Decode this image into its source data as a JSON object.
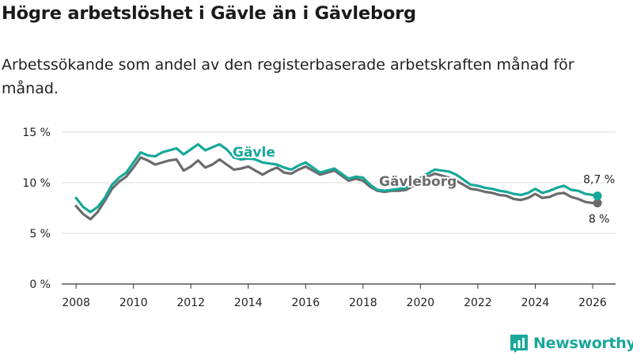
{
  "title": "Högre arbetslöshet i Gävle än i Gävleborg",
  "subtitle": "Arbetssökande som andel av den registerbaserade arbetskraften månad för månad.",
  "brand": {
    "name": "Newsworthy",
    "icon": "newsworthy-logo-icon"
  },
  "colors": {
    "gavle": "#16a89a",
    "gavleborg": "#6b6b6b",
    "grid": "#dedede",
    "axis": "#333333",
    "text": "#222222"
  },
  "chart_data": {
    "type": "line",
    "title": "Högre arbetslöshet i Gävle än i Gävleborg",
    "subtitle": "Arbetssökande som andel av den registerbaserade arbetskraften månad för månad.",
    "xlabel": "",
    "ylabel": "",
    "xlim": [
      2007.5,
      2026.8
    ],
    "ylim": [
      0,
      15
    ],
    "x_ticks": [
      2008,
      2010,
      2012,
      2014,
      2016,
      2018,
      2020,
      2022,
      2024,
      2026
    ],
    "x_tick_labels": [
      "2008",
      "2010",
      "2012",
      "2014",
      "2016",
      "2018",
      "2020",
      "2022",
      "2024",
      "2026"
    ],
    "y_ticks": [
      0,
      5,
      10,
      15
    ],
    "y_tick_labels": [
      "0 %",
      "5 %",
      "10 %",
      "15 %"
    ],
    "grid": true,
    "legend": "direct labels on the lines",
    "series": [
      {
        "name": "Gävle",
        "label": "Gävle",
        "end_label": "8,7 %",
        "points": [
          [
            2008.0,
            8.5
          ],
          [
            2008.25,
            7.6
          ],
          [
            2008.5,
            7.1
          ],
          [
            2008.75,
            7.6
          ],
          [
            2009.0,
            8.5
          ],
          [
            2009.25,
            9.8
          ],
          [
            2009.5,
            10.5
          ],
          [
            2009.75,
            11.0
          ],
          [
            2010.0,
            12.0
          ],
          [
            2010.25,
            13.0
          ],
          [
            2010.5,
            12.7
          ],
          [
            2010.75,
            12.6
          ],
          [
            2011.0,
            13.0
          ],
          [
            2011.25,
            13.2
          ],
          [
            2011.5,
            13.4
          ],
          [
            2011.75,
            12.8
          ],
          [
            2012.0,
            13.3
          ],
          [
            2012.25,
            13.8
          ],
          [
            2012.5,
            13.2
          ],
          [
            2012.75,
            13.5
          ],
          [
            2013.0,
            13.8
          ],
          [
            2013.25,
            13.3
          ],
          [
            2013.5,
            12.5
          ],
          [
            2013.75,
            12.3
          ],
          [
            2014.0,
            12.4
          ],
          [
            2014.25,
            12.3
          ],
          [
            2014.5,
            12.0
          ],
          [
            2014.75,
            11.9
          ],
          [
            2015.0,
            11.8
          ],
          [
            2015.25,
            11.5
          ],
          [
            2015.5,
            11.3
          ],
          [
            2015.75,
            11.7
          ],
          [
            2016.0,
            12.0
          ],
          [
            2016.25,
            11.5
          ],
          [
            2016.5,
            11.0
          ],
          [
            2016.75,
            11.2
          ],
          [
            2017.0,
            11.4
          ],
          [
            2017.25,
            10.9
          ],
          [
            2017.5,
            10.4
          ],
          [
            2017.75,
            10.6
          ],
          [
            2018.0,
            10.5
          ],
          [
            2018.25,
            9.8
          ],
          [
            2018.5,
            9.3
          ],
          [
            2018.75,
            9.2
          ],
          [
            2019.0,
            9.3
          ],
          [
            2019.25,
            9.4
          ],
          [
            2019.5,
            9.5
          ],
          [
            2019.75,
            10.0
          ],
          [
            2020.0,
            10.5
          ],
          [
            2020.25,
            10.9
          ],
          [
            2020.5,
            11.3
          ],
          [
            2020.75,
            11.2
          ],
          [
            2021.0,
            11.1
          ],
          [
            2021.25,
            10.8
          ],
          [
            2021.5,
            10.3
          ],
          [
            2021.75,
            9.8
          ],
          [
            2022.0,
            9.7
          ],
          [
            2022.25,
            9.5
          ],
          [
            2022.5,
            9.4
          ],
          [
            2022.75,
            9.2
          ],
          [
            2023.0,
            9.1
          ],
          [
            2023.25,
            8.9
          ],
          [
            2023.5,
            8.8
          ],
          [
            2023.75,
            9.0
          ],
          [
            2024.0,
            9.4
          ],
          [
            2024.25,
            9.0
          ],
          [
            2024.5,
            9.2
          ],
          [
            2024.75,
            9.5
          ],
          [
            2025.0,
            9.7
          ],
          [
            2025.25,
            9.3
          ],
          [
            2025.5,
            9.2
          ],
          [
            2025.75,
            8.9
          ],
          [
            2026.0,
            8.8
          ],
          [
            2026.17,
            8.7
          ]
        ]
      },
      {
        "name": "Gävleborg",
        "label": "Gävleborg",
        "end_label": "8 %",
        "points": [
          [
            2008.0,
            7.7
          ],
          [
            2008.25,
            6.9
          ],
          [
            2008.5,
            6.4
          ],
          [
            2008.75,
            7.1
          ],
          [
            2009.0,
            8.2
          ],
          [
            2009.25,
            9.4
          ],
          [
            2009.5,
            10.1
          ],
          [
            2009.75,
            10.6
          ],
          [
            2010.0,
            11.5
          ],
          [
            2010.25,
            12.5
          ],
          [
            2010.5,
            12.2
          ],
          [
            2010.75,
            11.8
          ],
          [
            2011.0,
            12.0
          ],
          [
            2011.25,
            12.2
          ],
          [
            2011.5,
            12.3
          ],
          [
            2011.75,
            11.2
          ],
          [
            2012.0,
            11.6
          ],
          [
            2012.25,
            12.2
          ],
          [
            2012.5,
            11.5
          ],
          [
            2012.75,
            11.8
          ],
          [
            2013.0,
            12.3
          ],
          [
            2013.25,
            11.8
          ],
          [
            2013.5,
            11.3
          ],
          [
            2013.75,
            11.4
          ],
          [
            2014.0,
            11.6
          ],
          [
            2014.25,
            11.2
          ],
          [
            2014.5,
            10.8
          ],
          [
            2014.75,
            11.2
          ],
          [
            2015.0,
            11.5
          ],
          [
            2015.25,
            11.0
          ],
          [
            2015.5,
            10.9
          ],
          [
            2015.75,
            11.3
          ],
          [
            2016.0,
            11.6
          ],
          [
            2016.25,
            11.2
          ],
          [
            2016.5,
            10.8
          ],
          [
            2016.75,
            11.0
          ],
          [
            2017.0,
            11.2
          ],
          [
            2017.25,
            10.7
          ],
          [
            2017.5,
            10.2
          ],
          [
            2017.75,
            10.4
          ],
          [
            2018.0,
            10.2
          ],
          [
            2018.25,
            9.6
          ],
          [
            2018.5,
            9.2
          ],
          [
            2018.75,
            9.1
          ],
          [
            2019.0,
            9.2
          ],
          [
            2019.25,
            9.2
          ],
          [
            2019.5,
            9.3
          ],
          [
            2019.75,
            9.7
          ],
          [
            2020.0,
            10.2
          ],
          [
            2020.25,
            10.6
          ],
          [
            2020.5,
            10.9
          ],
          [
            2020.75,
            10.7
          ],
          [
            2021.0,
            10.5
          ],
          [
            2021.25,
            10.2
          ],
          [
            2021.5,
            9.8
          ],
          [
            2021.75,
            9.4
          ],
          [
            2022.0,
            9.3
          ],
          [
            2022.25,
            9.1
          ],
          [
            2022.5,
            9.0
          ],
          [
            2022.75,
            8.8
          ],
          [
            2023.0,
            8.7
          ],
          [
            2023.25,
            8.4
          ],
          [
            2023.5,
            8.3
          ],
          [
            2023.75,
            8.5
          ],
          [
            2024.0,
            8.9
          ],
          [
            2024.25,
            8.5
          ],
          [
            2024.5,
            8.6
          ],
          [
            2024.75,
            8.9
          ],
          [
            2025.0,
            9.0
          ],
          [
            2025.25,
            8.6
          ],
          [
            2025.5,
            8.4
          ],
          [
            2025.75,
            8.1
          ],
          [
            2026.0,
            8.0
          ],
          [
            2026.17,
            8.0
          ]
        ]
      }
    ]
  }
}
